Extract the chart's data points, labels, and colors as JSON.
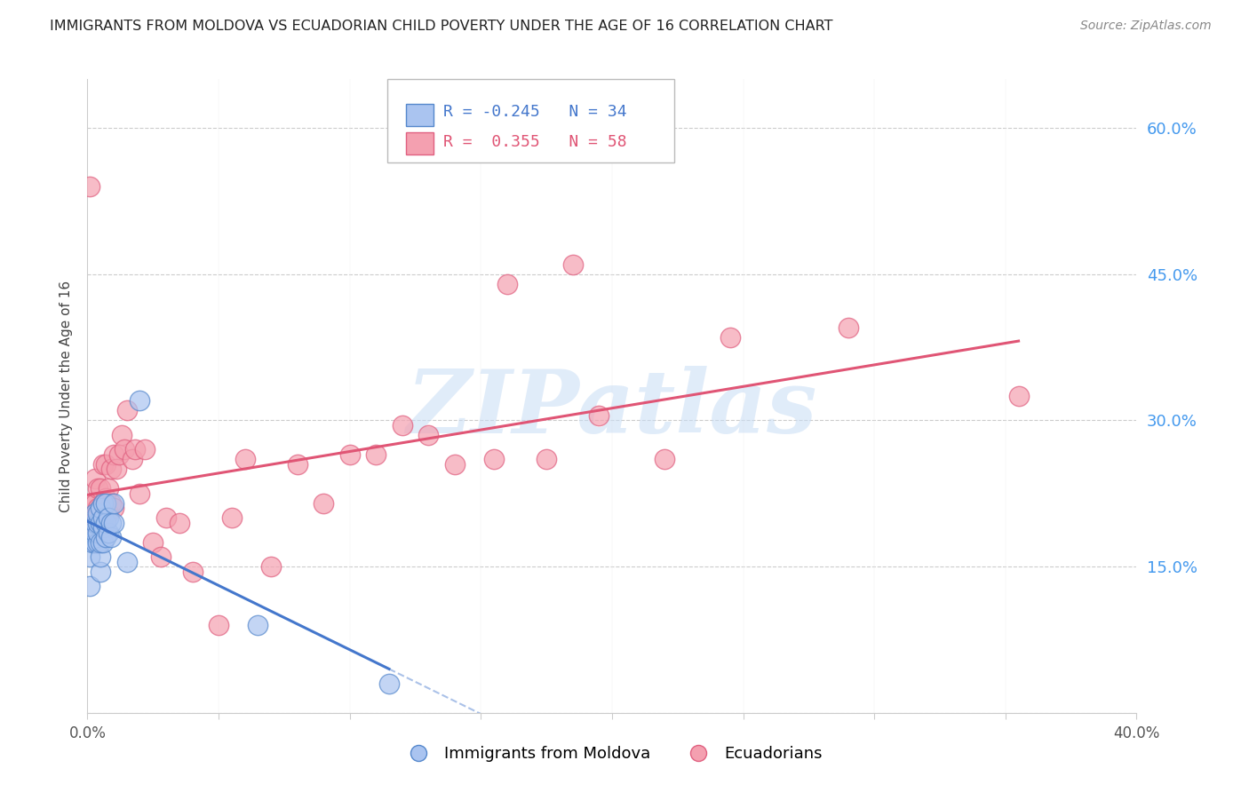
{
  "title": "IMMIGRANTS FROM MOLDOVA VS ECUADORIAN CHILD POVERTY UNDER THE AGE OF 16 CORRELATION CHART",
  "source": "Source: ZipAtlas.com",
  "ylabel": "Child Poverty Under the Age of 16",
  "xlim": [
    0.0,
    0.4
  ],
  "ylim": [
    0.0,
    0.65
  ],
  "x_ticks": [
    0.0,
    0.05,
    0.1,
    0.15,
    0.2,
    0.25,
    0.3,
    0.35,
    0.4
  ],
  "y_ticks": [
    0.0,
    0.15,
    0.3,
    0.45,
    0.6
  ],
  "grid_color": "#cccccc",
  "moldova_color": "#aac4f0",
  "ecuador_color": "#f4a0b0",
  "moldova_edge_color": "#5588cc",
  "ecuador_edge_color": "#e06080",
  "moldova_line_color": "#4477cc",
  "ecuador_line_color": "#e05575",
  "moldova_R": -0.245,
  "moldova_N": 34,
  "ecuador_R": 0.355,
  "ecuador_N": 58,
  "moldova_scatter_x": [
    0.001,
    0.001,
    0.002,
    0.002,
    0.003,
    0.003,
    0.003,
    0.003,
    0.004,
    0.004,
    0.004,
    0.004,
    0.005,
    0.005,
    0.005,
    0.005,
    0.005,
    0.006,
    0.006,
    0.006,
    0.006,
    0.007,
    0.007,
    0.007,
    0.008,
    0.008,
    0.009,
    0.009,
    0.01,
    0.01,
    0.015,
    0.02,
    0.065,
    0.115
  ],
  "moldova_scatter_y": [
    0.13,
    0.16,
    0.175,
    0.185,
    0.175,
    0.185,
    0.195,
    0.205,
    0.175,
    0.185,
    0.195,
    0.205,
    0.145,
    0.16,
    0.175,
    0.195,
    0.21,
    0.175,
    0.19,
    0.2,
    0.215,
    0.18,
    0.195,
    0.215,
    0.185,
    0.2,
    0.18,
    0.195,
    0.195,
    0.215,
    0.155,
    0.32,
    0.09,
    0.03
  ],
  "ecuador_scatter_x": [
    0.001,
    0.002,
    0.002,
    0.003,
    0.003,
    0.003,
    0.004,
    0.004,
    0.004,
    0.005,
    0.005,
    0.005,
    0.006,
    0.006,
    0.006,
    0.007,
    0.007,
    0.007,
    0.008,
    0.008,
    0.009,
    0.009,
    0.01,
    0.01,
    0.011,
    0.012,
    0.013,
    0.014,
    0.015,
    0.017,
    0.018,
    0.02,
    0.022,
    0.025,
    0.028,
    0.03,
    0.035,
    0.04,
    0.05,
    0.055,
    0.06,
    0.07,
    0.08,
    0.09,
    0.1,
    0.11,
    0.12,
    0.13,
    0.14,
    0.155,
    0.16,
    0.175,
    0.185,
    0.195,
    0.22,
    0.245,
    0.29,
    0.355
  ],
  "ecuador_scatter_y": [
    0.54,
    0.195,
    0.215,
    0.195,
    0.215,
    0.24,
    0.2,
    0.21,
    0.23,
    0.19,
    0.21,
    0.23,
    0.195,
    0.215,
    0.255,
    0.2,
    0.22,
    0.255,
    0.205,
    0.23,
    0.215,
    0.25,
    0.21,
    0.265,
    0.25,
    0.265,
    0.285,
    0.27,
    0.31,
    0.26,
    0.27,
    0.225,
    0.27,
    0.175,
    0.16,
    0.2,
    0.195,
    0.145,
    0.09,
    0.2,
    0.26,
    0.15,
    0.255,
    0.215,
    0.265,
    0.265,
    0.295,
    0.285,
    0.255,
    0.26,
    0.44,
    0.26,
    0.46,
    0.305,
    0.26,
    0.385,
    0.395,
    0.325
  ],
  "watermark_text": "ZIPatlas",
  "watermark_color": "#c8ddf5",
  "background_color": "#ffffff"
}
